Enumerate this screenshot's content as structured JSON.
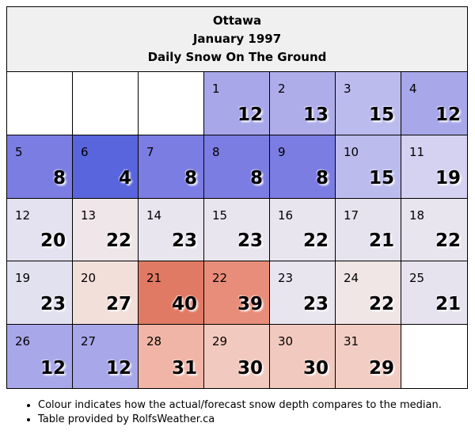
{
  "header": {
    "city": "Ottawa",
    "month": "January 1997",
    "subtitle": "Daily Snow On The Ground"
  },
  "days": [
    {
      "day": "",
      "depth": "",
      "color": "#ffffff"
    },
    {
      "day": "",
      "depth": "",
      "color": "#ffffff"
    },
    {
      "day": "",
      "depth": "",
      "color": "#ffffff"
    },
    {
      "day": "1",
      "depth": "12",
      "color": "#a8a7e9"
    },
    {
      "day": "2",
      "depth": "13",
      "color": "#aeadea"
    },
    {
      "day": "3",
      "depth": "15",
      "color": "#bcbbee"
    },
    {
      "day": "4",
      "depth": "12",
      "color": "#a8a7e9"
    },
    {
      "day": "5",
      "depth": "8",
      "color": "#7c7de2"
    },
    {
      "day": "6",
      "depth": "4",
      "color": "#5965dc"
    },
    {
      "day": "7",
      "depth": "8",
      "color": "#7c7de2"
    },
    {
      "day": "8",
      "depth": "8",
      "color": "#7c7de2"
    },
    {
      "day": "9",
      "depth": "8",
      "color": "#7c7de2"
    },
    {
      "day": "10",
      "depth": "15",
      "color": "#bcbbee"
    },
    {
      "day": "11",
      "depth": "19",
      "color": "#d5d1f1"
    },
    {
      "day": "12",
      "depth": "20",
      "color": "#e4e2f0"
    },
    {
      "day": "13",
      "depth": "22",
      "color": "#eee6e8"
    },
    {
      "day": "14",
      "depth": "23",
      "color": "#e9e5ef"
    },
    {
      "day": "15",
      "depth": "23",
      "color": "#e9e5ef"
    },
    {
      "day": "16",
      "depth": "22",
      "color": "#e9e5ef"
    },
    {
      "day": "17",
      "depth": "21",
      "color": "#e6e3ef"
    },
    {
      "day": "18",
      "depth": "22",
      "color": "#e9e5ef"
    },
    {
      "day": "19",
      "depth": "23",
      "color": "#e2e1f0"
    },
    {
      "day": "20",
      "depth": "27",
      "color": "#f2dfda"
    },
    {
      "day": "21",
      "depth": "40",
      "color": "#e07a64"
    },
    {
      "day": "22",
      "depth": "39",
      "color": "#e88d79"
    },
    {
      "day": "23",
      "depth": "23",
      "color": "#e9e5ef"
    },
    {
      "day": "24",
      "depth": "22",
      "color": "#f0e6e6"
    },
    {
      "day": "25",
      "depth": "21",
      "color": "#e6e3ef"
    },
    {
      "day": "26",
      "depth": "12",
      "color": "#a8a7e9"
    },
    {
      "day": "27",
      "depth": "12",
      "color": "#a8a7e9"
    },
    {
      "day": "28",
      "depth": "31",
      "color": "#f1b5a7"
    },
    {
      "day": "29",
      "depth": "30",
      "color": "#f2c9be"
    },
    {
      "day": "30",
      "depth": "30",
      "color": "#f2c9be"
    },
    {
      "day": "31",
      "depth": "29",
      "color": "#f2cdc3"
    },
    {
      "day": "",
      "depth": "",
      "color": "#ffffff"
    }
  ],
  "notes": [
    "Colour indicates how the actual/forecast snow depth compares to the median.",
    "Table provided by RolfsWeather.ca"
  ]
}
